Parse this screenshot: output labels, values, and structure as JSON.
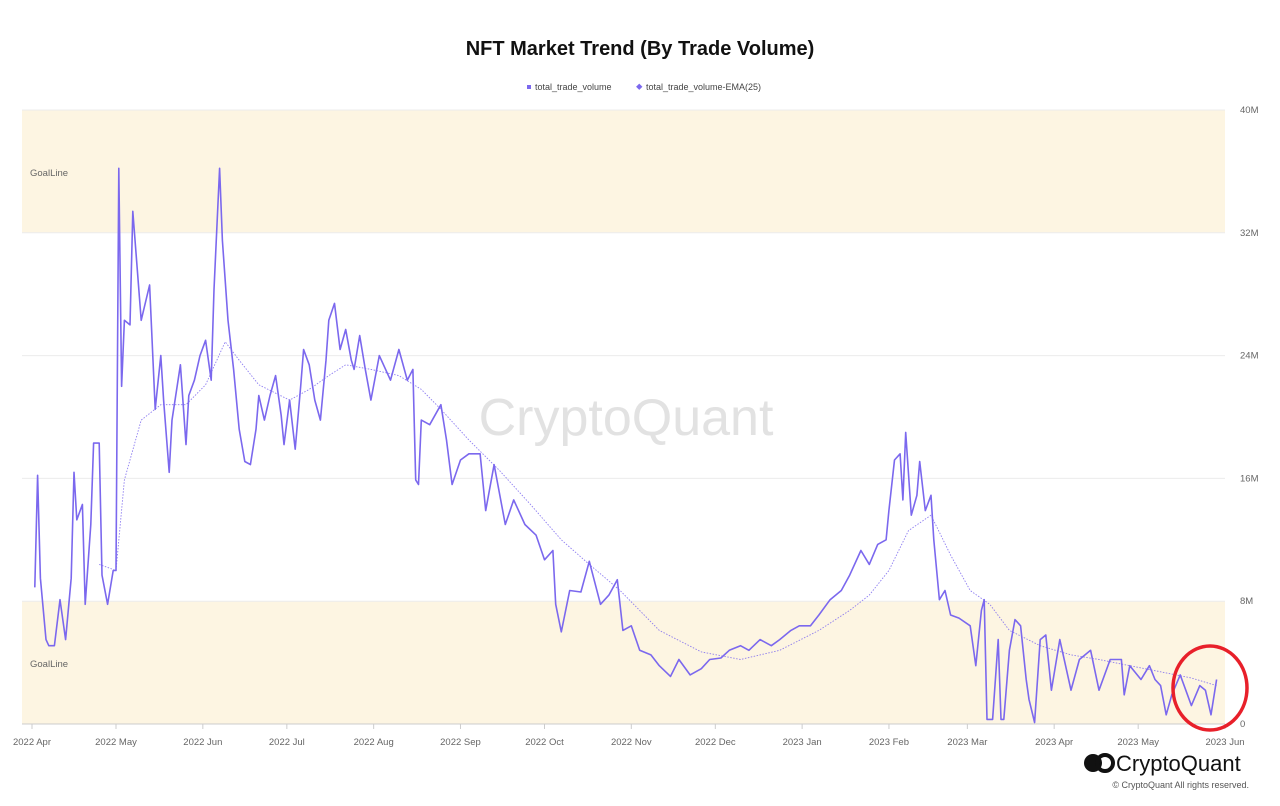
{
  "chart_data": {
    "type": "line",
    "title": "NFT Market Trend (By Trade Volume)",
    "xlabel": "",
    "ylabel": "",
    "ylim": [
      0,
      40000000
    ],
    "xlim": [
      "2022-04-01",
      "2023-06-01"
    ],
    "y_ticks": [
      {
        "value": 0,
        "label": "0"
      },
      {
        "value": 8000000,
        "label": "8M"
      },
      {
        "value": 16000000,
        "label": "16M"
      },
      {
        "value": 24000000,
        "label": "24M"
      },
      {
        "value": 32000000,
        "label": "32M"
      },
      {
        "value": 40000000,
        "label": "40M"
      }
    ],
    "x_ticks": [
      {
        "date": "2022-04-01",
        "label": "2022 Apr"
      },
      {
        "date": "2022-05-01",
        "label": "2022 May"
      },
      {
        "date": "2022-06-01",
        "label": "2022 Jun"
      },
      {
        "date": "2022-07-01",
        "label": "2022 Jul"
      },
      {
        "date": "2022-08-01",
        "label": "2022 Aug"
      },
      {
        "date": "2022-09-01",
        "label": "2022 Sep"
      },
      {
        "date": "2022-10-01",
        "label": "2022 Oct"
      },
      {
        "date": "2022-11-01",
        "label": "2022 Nov"
      },
      {
        "date": "2022-12-01",
        "label": "2022 Dec"
      },
      {
        "date": "2023-01-01",
        "label": "2023 Jan"
      },
      {
        "date": "2023-02-01",
        "label": "2023 Feb"
      },
      {
        "date": "2023-03-01",
        "label": "2023 Mar"
      },
      {
        "date": "2023-04-01",
        "label": "2023 Apr"
      },
      {
        "date": "2023-05-01",
        "label": "2023 May"
      },
      {
        "date": "2023-06-01",
        "label": "2023 Jun"
      }
    ],
    "grid": true,
    "legend_position": "top-center",
    "bands": [
      {
        "label": "GoalLine",
        "from": 32000000,
        "to": 40000000,
        "color": "#fdf5e2"
      },
      {
        "label": "GoalLine",
        "from": 0,
        "to": 8000000,
        "color": "#fdf5e2"
      }
    ],
    "series": [
      {
        "name": "total_trade_volume",
        "color": "#7b68ee",
        "style": "solid",
        "points": [
          [
            "2022-04-02",
            8.9
          ],
          [
            "2022-04-03",
            16.2
          ],
          [
            "2022-04-04",
            9.5
          ],
          [
            "2022-04-06",
            5.5
          ],
          [
            "2022-04-07",
            5.1
          ],
          [
            "2022-04-09",
            5.1
          ],
          [
            "2022-04-11",
            8.1
          ],
          [
            "2022-04-13",
            5.5
          ],
          [
            "2022-04-15",
            9.5
          ],
          [
            "2022-04-16",
            16.4
          ],
          [
            "2022-04-17",
            13.3
          ],
          [
            "2022-04-19",
            14.3
          ],
          [
            "2022-04-20",
            7.8
          ],
          [
            "2022-04-22",
            13.0
          ],
          [
            "2022-04-23",
            18.3
          ],
          [
            "2022-04-25",
            18.3
          ],
          [
            "2022-04-26",
            9.7
          ],
          [
            "2022-04-28",
            7.8
          ],
          [
            "2022-04-30",
            10.0
          ],
          [
            "2022-05-01",
            10.0
          ],
          [
            "2022-05-02",
            36.2
          ],
          [
            "2022-05-03",
            22.0
          ],
          [
            "2022-05-04",
            26.3
          ],
          [
            "2022-05-06",
            26.0
          ],
          [
            "2022-05-07",
            33.4
          ],
          [
            "2022-05-10",
            26.3
          ],
          [
            "2022-05-13",
            28.6
          ],
          [
            "2022-05-15",
            20.5
          ],
          [
            "2022-05-17",
            24.0
          ],
          [
            "2022-05-18",
            21.1
          ],
          [
            "2022-05-20",
            16.4
          ],
          [
            "2022-05-21",
            19.8
          ],
          [
            "2022-05-24",
            23.4
          ],
          [
            "2022-05-26",
            18.2
          ],
          [
            "2022-05-27",
            21.4
          ],
          [
            "2022-05-29",
            22.4
          ],
          [
            "2022-05-31",
            24.0
          ],
          [
            "2022-06-02",
            25.0
          ],
          [
            "2022-06-04",
            22.4
          ],
          [
            "2022-06-05",
            28.3
          ],
          [
            "2022-06-07",
            36.2
          ],
          [
            "2022-06-08",
            31.5
          ],
          [
            "2022-06-10",
            26.3
          ],
          [
            "2022-06-12",
            23.1
          ],
          [
            "2022-06-14",
            19.2
          ],
          [
            "2022-06-16",
            17.1
          ],
          [
            "2022-06-18",
            16.9
          ],
          [
            "2022-06-20",
            19.2
          ],
          [
            "2022-06-21",
            21.4
          ],
          [
            "2022-06-23",
            19.8
          ],
          [
            "2022-06-25",
            21.4
          ],
          [
            "2022-06-27",
            22.7
          ],
          [
            "2022-06-29",
            20.1
          ],
          [
            "2022-06-30",
            18.2
          ],
          [
            "2022-07-02",
            21.1
          ],
          [
            "2022-07-04",
            17.9
          ],
          [
            "2022-07-06",
            22.1
          ],
          [
            "2022-07-07",
            24.4
          ],
          [
            "2022-07-09",
            23.4
          ],
          [
            "2022-07-11",
            21.1
          ],
          [
            "2022-07-13",
            19.8
          ],
          [
            "2022-07-15",
            23.7
          ],
          [
            "2022-07-16",
            26.3
          ],
          [
            "2022-07-18",
            27.4
          ],
          [
            "2022-07-20",
            24.4
          ],
          [
            "2022-07-22",
            25.7
          ],
          [
            "2022-07-24",
            23.7
          ],
          [
            "2022-07-25",
            23.1
          ],
          [
            "2022-07-27",
            25.3
          ],
          [
            "2022-07-29",
            23.1
          ],
          [
            "2022-07-31",
            21.1
          ],
          [
            "2022-08-03",
            24.0
          ],
          [
            "2022-08-07",
            22.4
          ],
          [
            "2022-08-10",
            24.4
          ],
          [
            "2022-08-13",
            22.4
          ],
          [
            "2022-08-15",
            23.1
          ],
          [
            "2022-08-16",
            15.9
          ],
          [
            "2022-08-17",
            15.6
          ],
          [
            "2022-08-18",
            19.8
          ],
          [
            "2022-08-21",
            19.5
          ],
          [
            "2022-08-25",
            20.8
          ],
          [
            "2022-08-27",
            18.5
          ],
          [
            "2022-08-29",
            15.6
          ],
          [
            "2022-09-01",
            17.2
          ],
          [
            "2022-09-04",
            17.6
          ],
          [
            "2022-09-08",
            17.6
          ],
          [
            "2022-09-10",
            13.9
          ],
          [
            "2022-09-13",
            16.9
          ],
          [
            "2022-09-17",
            13.0
          ],
          [
            "2022-09-20",
            14.6
          ],
          [
            "2022-09-24",
            13.0
          ],
          [
            "2022-09-28",
            12.3
          ],
          [
            "2022-10-01",
            10.7
          ],
          [
            "2022-10-04",
            11.3
          ],
          [
            "2022-10-05",
            7.8
          ],
          [
            "2022-10-07",
            6.0
          ],
          [
            "2022-10-10",
            8.7
          ],
          [
            "2022-10-14",
            8.6
          ],
          [
            "2022-10-17",
            10.6
          ],
          [
            "2022-10-21",
            7.8
          ],
          [
            "2022-10-24",
            8.4
          ],
          [
            "2022-10-27",
            9.4
          ],
          [
            "2022-10-29",
            6.1
          ],
          [
            "2022-11-01",
            6.4
          ],
          [
            "2022-11-04",
            4.8
          ],
          [
            "2022-11-08",
            4.5
          ],
          [
            "2022-11-11",
            3.8
          ],
          [
            "2022-11-15",
            3.1
          ],
          [
            "2022-11-18",
            4.2
          ],
          [
            "2022-11-22",
            3.2
          ],
          [
            "2022-11-26",
            3.6
          ],
          [
            "2022-11-29",
            4.2
          ],
          [
            "2022-12-03",
            4.3
          ],
          [
            "2022-12-06",
            4.8
          ],
          [
            "2022-12-10",
            5.1
          ],
          [
            "2022-12-13",
            4.8
          ],
          [
            "2022-12-17",
            5.5
          ],
          [
            "2022-12-21",
            5.1
          ],
          [
            "2022-12-24",
            5.5
          ],
          [
            "2022-12-28",
            6.1
          ],
          [
            "2022-12-31",
            6.4
          ],
          [
            "2023-01-04",
            6.4
          ],
          [
            "2023-01-07",
            7.1
          ],
          [
            "2023-01-11",
            8.1
          ],
          [
            "2023-01-15",
            8.7
          ],
          [
            "2023-01-18",
            9.7
          ],
          [
            "2023-01-22",
            11.3
          ],
          [
            "2023-01-25",
            10.4
          ],
          [
            "2023-01-28",
            11.7
          ],
          [
            "2023-01-31",
            12.0
          ],
          [
            "2023-02-01",
            13.9
          ],
          [
            "2023-02-03",
            17.2
          ],
          [
            "2023-02-05",
            17.6
          ],
          [
            "2023-02-06",
            14.6
          ],
          [
            "2023-02-07",
            19.0
          ],
          [
            "2023-02-09",
            13.6
          ],
          [
            "2023-02-11",
            14.9
          ],
          [
            "2023-02-12",
            17.1
          ],
          [
            "2023-02-14",
            13.9
          ],
          [
            "2023-02-16",
            14.9
          ],
          [
            "2023-02-17",
            12.0
          ],
          [
            "2023-02-19",
            8.1
          ],
          [
            "2023-02-21",
            8.7
          ],
          [
            "2023-02-23",
            7.1
          ],
          [
            "2023-02-26",
            6.9
          ],
          [
            "2023-03-02",
            6.4
          ],
          [
            "2023-03-04",
            3.8
          ],
          [
            "2023-03-06",
            7.4
          ],
          [
            "2023-03-07",
            8.1
          ],
          [
            "2023-03-08",
            0.3
          ],
          [
            "2023-03-10",
            0.3
          ],
          [
            "2023-03-12",
            5.5
          ],
          [
            "2023-03-13",
            0.3
          ],
          [
            "2023-03-14",
            0.3
          ],
          [
            "2023-03-16",
            4.8
          ],
          [
            "2023-03-18",
            6.8
          ],
          [
            "2023-03-20",
            6.4
          ],
          [
            "2023-03-22",
            2.9
          ],
          [
            "2023-03-23",
            1.6
          ],
          [
            "2023-03-25",
            0.1
          ],
          [
            "2023-03-27",
            5.5
          ],
          [
            "2023-03-29",
            5.8
          ],
          [
            "2023-03-31",
            2.2
          ],
          [
            "2023-04-03",
            5.5
          ],
          [
            "2023-04-07",
            2.2
          ],
          [
            "2023-04-10",
            4.2
          ],
          [
            "2023-04-14",
            4.8
          ],
          [
            "2023-04-17",
            2.2
          ],
          [
            "2023-04-21",
            4.2
          ],
          [
            "2023-04-25",
            4.2
          ],
          [
            "2023-04-26",
            1.9
          ],
          [
            "2023-04-28",
            3.8
          ],
          [
            "2023-05-02",
            2.9
          ],
          [
            "2023-05-05",
            3.8
          ],
          [
            "2023-05-07",
            2.9
          ],
          [
            "2023-05-09",
            2.5
          ],
          [
            "2023-05-11",
            0.6
          ],
          [
            "2023-05-13",
            1.9
          ],
          [
            "2023-05-16",
            3.2
          ],
          [
            "2023-05-18",
            2.2
          ],
          [
            "2023-05-20",
            1.2
          ],
          [
            "2023-05-23",
            2.5
          ],
          [
            "2023-05-25",
            2.2
          ],
          [
            "2023-05-27",
            0.6
          ],
          [
            "2023-05-29",
            2.9
          ]
        ],
        "unit": "M"
      },
      {
        "name": "total_trade_volume-EMA(25)",
        "color": "#7b68ee",
        "style": "dotted",
        "unit": "M",
        "points": [
          [
            "2022-04-25",
            10.4
          ],
          [
            "2022-05-01",
            10.0
          ],
          [
            "2022-05-04",
            15.9
          ],
          [
            "2022-05-10",
            19.8
          ],
          [
            "2022-05-17",
            20.8
          ],
          [
            "2022-05-26",
            20.8
          ],
          [
            "2022-06-02",
            22.1
          ],
          [
            "2022-06-09",
            24.9
          ],
          [
            "2022-06-14",
            23.7
          ],
          [
            "2022-06-21",
            22.1
          ],
          [
            "2022-07-02",
            21.1
          ],
          [
            "2022-07-09",
            21.8
          ],
          [
            "2022-07-16",
            22.7
          ],
          [
            "2022-07-22",
            23.4
          ],
          [
            "2022-07-31",
            23.1
          ],
          [
            "2022-08-10",
            22.7
          ],
          [
            "2022-08-18",
            21.8
          ],
          [
            "2022-08-25",
            20.5
          ],
          [
            "2022-09-04",
            18.5
          ],
          [
            "2022-09-15",
            16.5
          ],
          [
            "2022-09-26",
            14.3
          ],
          [
            "2022-10-07",
            12.0
          ],
          [
            "2022-10-17",
            10.4
          ],
          [
            "2022-10-28",
            8.7
          ],
          [
            "2022-11-11",
            6.1
          ],
          [
            "2022-11-26",
            4.7
          ],
          [
            "2022-12-10",
            4.2
          ],
          [
            "2022-12-24",
            4.8
          ],
          [
            "2023-01-07",
            6.1
          ],
          [
            "2023-01-18",
            7.4
          ],
          [
            "2023-01-25",
            8.4
          ],
          [
            "2023-02-01",
            10.0
          ],
          [
            "2023-02-08",
            12.6
          ],
          [
            "2023-02-16",
            13.6
          ],
          [
            "2023-02-23",
            11.0
          ],
          [
            "2023-03-02",
            8.7
          ],
          [
            "2023-03-09",
            7.8
          ],
          [
            "2023-03-16",
            6.1
          ],
          [
            "2023-03-27",
            5.1
          ],
          [
            "2023-04-07",
            4.5
          ],
          [
            "2023-04-17",
            4.2
          ],
          [
            "2023-04-28",
            3.8
          ],
          [
            "2023-05-09",
            3.4
          ],
          [
            "2023-05-20",
            3.0
          ],
          [
            "2023-05-29",
            2.5
          ]
        ]
      }
    ],
    "annotations": [
      {
        "type": "circle",
        "color": "#e8202a",
        "around": "2023-05 end of series"
      }
    ]
  },
  "watermark": "CryptoQuant",
  "footer": {
    "logo_text": "CryptoQuant",
    "copyright": "© CryptoQuant All rights reserved."
  }
}
